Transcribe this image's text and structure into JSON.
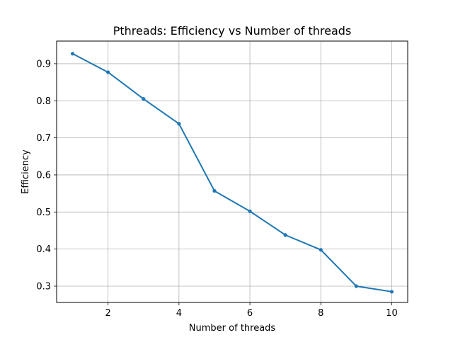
{
  "chart_data": {
    "type": "line",
    "title": "Pthreads: Efficiency vs Number of threads",
    "xlabel": "Number of threads",
    "ylabel": "Efficiency",
    "xlim": [
      0.55,
      10.45
    ],
    "ylim": [
      0.256,
      0.961
    ],
    "xticks": [
      2,
      4,
      6,
      8,
      10
    ],
    "yticks": [
      0.3,
      0.4,
      0.5,
      0.6,
      0.7,
      0.8,
      0.9
    ],
    "xtick_labels": [
      "2",
      "4",
      "6",
      "8",
      "10"
    ],
    "ytick_labels": [
      "0.3",
      "0.4",
      "0.5",
      "0.6",
      "0.7",
      "0.8",
      "0.9"
    ],
    "grid": true,
    "series": [
      {
        "color": "#1f77b4",
        "marker": "dot",
        "x": [
          1,
          2,
          3,
          4,
          5,
          6,
          7,
          8,
          9,
          10
        ],
        "y": [
          0.927,
          0.877,
          0.805,
          0.738,
          0.557,
          0.502,
          0.438,
          0.398,
          0.3,
          0.285
        ]
      }
    ]
  }
}
